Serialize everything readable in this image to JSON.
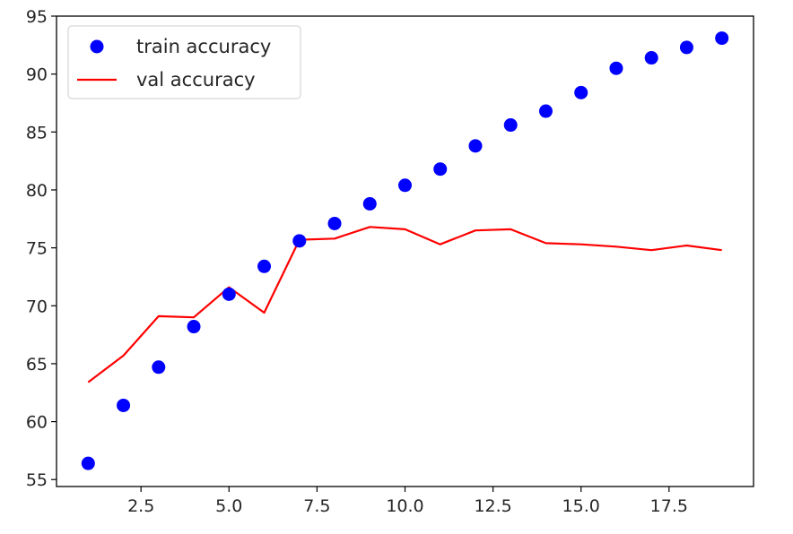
{
  "chart_data": {
    "type": "line",
    "title": "",
    "xlabel": "",
    "ylabel": "",
    "xlim": [
      0.1,
      19.9
    ],
    "ylim": [
      54.4,
      95
    ],
    "grid": false,
    "legend_position": "top-left",
    "x_ticks": [
      2.5,
      5.0,
      7.5,
      10.0,
      12.5,
      15.0,
      17.5
    ],
    "x_tick_labels": [
      "2.5",
      "5.0",
      "7.5",
      "10.0",
      "12.5",
      "15.0",
      "17.5"
    ],
    "y_ticks": [
      55,
      60,
      65,
      70,
      75,
      80,
      85,
      90,
      95
    ],
    "y_tick_labels": [
      "55",
      "60",
      "65",
      "70",
      "75",
      "80",
      "85",
      "90",
      "95"
    ],
    "series": [
      {
        "name": "train accuracy",
        "style": "points",
        "color": "#0000ff",
        "x": [
          1,
          2,
          3,
          4,
          5,
          6,
          7,
          8,
          9,
          10,
          11,
          12,
          13,
          14,
          15,
          16,
          17,
          18,
          19
        ],
        "values": [
          56.4,
          61.4,
          64.7,
          68.2,
          71.0,
          73.4,
          75.6,
          77.1,
          78.8,
          80.4,
          81.8,
          83.8,
          85.6,
          86.8,
          88.4,
          90.5,
          91.4,
          92.3,
          93.1
        ]
      },
      {
        "name": "val accuracy",
        "style": "line",
        "color": "#ff0000",
        "x": [
          1,
          2,
          3,
          4,
          5,
          6,
          7,
          8,
          9,
          10,
          11,
          12,
          13,
          14,
          15,
          16,
          17,
          18,
          19
        ],
        "values": [
          63.4,
          65.7,
          69.1,
          69.0,
          71.6,
          69.4,
          75.7,
          75.8,
          76.8,
          76.6,
          75.3,
          76.5,
          76.6,
          75.4,
          75.3,
          75.1,
          74.8,
          75.2,
          74.8
        ]
      }
    ]
  }
}
